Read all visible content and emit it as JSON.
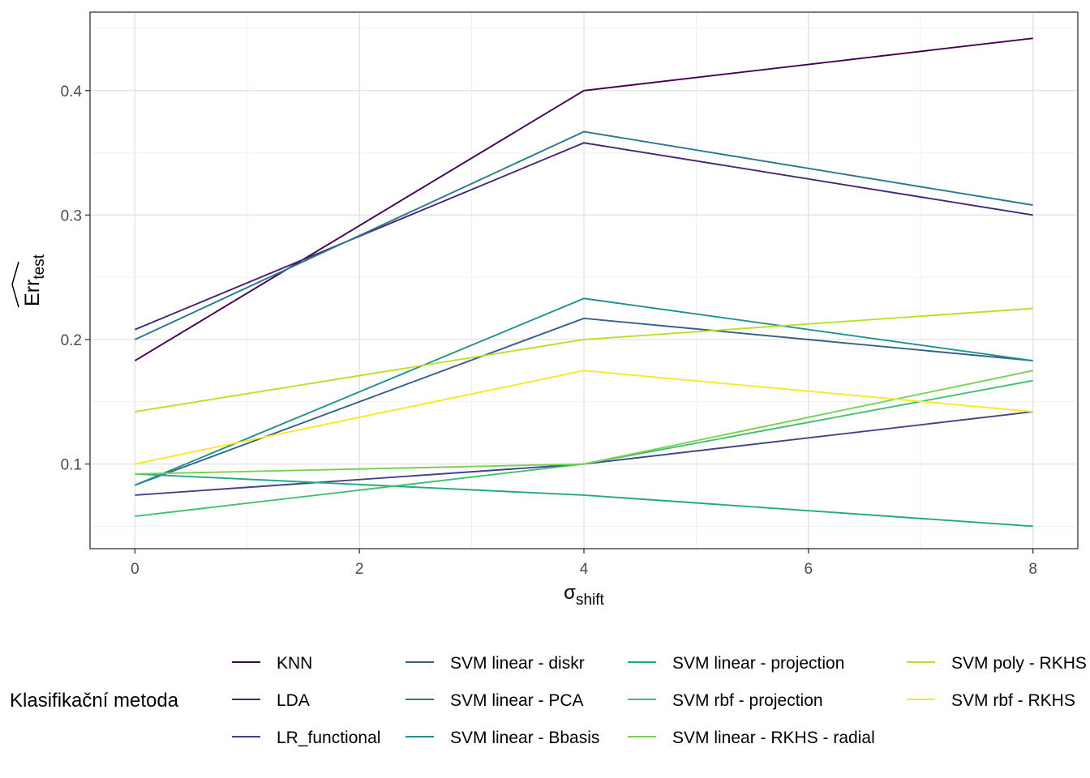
{
  "chart_data": {
    "type": "line",
    "x": [
      0,
      4,
      8
    ],
    "xlabel": "σ",
    "xlabel_sub": "shift",
    "ylabel": "Err",
    "ylabel_sub": "test",
    "xlim": [
      -0.4,
      8.4
    ],
    "ylim": [
      0.032,
      0.463
    ],
    "xticks": [
      0,
      2,
      4,
      6,
      8
    ],
    "yticks": [
      0.1,
      0.2,
      0.3,
      0.4
    ],
    "grid": true,
    "legend_title": "Klasifikační metoda",
    "legend_position": "bottom",
    "series": [
      {
        "name": "KNN",
        "color": "#440154",
        "values": [
          0.183,
          0.4,
          0.442
        ]
      },
      {
        "name": "LDA",
        "color": "#482576",
        "values": [
          0.208,
          0.358,
          0.3
        ]
      },
      {
        "name": "LR_functional",
        "color": "#414487",
        "values": [
          0.075,
          0.1,
          0.142
        ]
      },
      {
        "name": "SVM linear - diskr",
        "color": "#35608D",
        "values": [
          0.083,
          0.217,
          0.183
        ]
      },
      {
        "name": "SVM linear - PCA",
        "color": "#2A788E",
        "values": [
          0.2,
          0.367,
          0.308
        ]
      },
      {
        "name": "SVM linear - Bbasis",
        "color": "#21908C",
        "values": [
          0.083,
          0.233,
          0.183
        ]
      },
      {
        "name": "SVM linear - projection",
        "color": "#22A884",
        "values": [
          0.092,
          0.075,
          0.05
        ]
      },
      {
        "name": "SVM rbf - projection",
        "color": "#43BF71",
        "values": [
          0.058,
          0.1,
          0.167
        ]
      },
      {
        "name": "SVM linear - RKHS - radial",
        "color": "#7AD151",
        "values": [
          0.092,
          0.1,
          0.175
        ]
      },
      {
        "name": "SVM poly - RKHS",
        "color": "#BBDF27",
        "values": [
          0.142,
          0.2,
          0.225
        ]
      },
      {
        "name": "SVM rbf - RKHS",
        "color": "#FDE725",
        "values": [
          0.1,
          0.175,
          0.142
        ]
      }
    ]
  }
}
